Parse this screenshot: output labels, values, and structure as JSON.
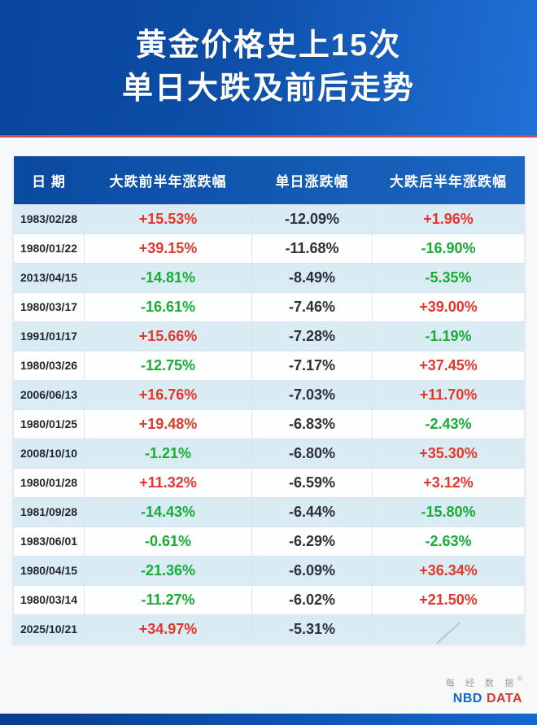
{
  "colors": {
    "up": "#e2382c",
    "down": "#17ad35",
    "neutral": "#2e3038",
    "banner_red_line": "#c84a52",
    "header_blue": "#0d4ea8"
  },
  "header": {
    "title_line1": "黄金价格史上15次",
    "title_line2": "单日大跌及前后走势"
  },
  "table": {
    "headers": [
      "日 期",
      "大跌前半年涨跌幅",
      "单日涨跌幅",
      "大跌后半年涨跌幅"
    ],
    "rows": [
      {
        "date": "1983/02/28",
        "before": "+15.53%",
        "day": "-12.09%",
        "after": "+1.96%"
      },
      {
        "date": "1980/01/22",
        "before": "+39.15%",
        "day": "-11.68%",
        "after": "-16.90%"
      },
      {
        "date": "2013/04/15",
        "before": "-14.81%",
        "day": "-8.49%",
        "after": "-5.35%"
      },
      {
        "date": "1980/03/17",
        "before": "-16.61%",
        "day": "-7.46%",
        "after": "+39.00%"
      },
      {
        "date": "1991/01/17",
        "before": "+15.66%",
        "day": "-7.28%",
        "after": "-1.19%"
      },
      {
        "date": "1980/03/26",
        "before": "-12.75%",
        "day": "-7.17%",
        "after": "+37.45%"
      },
      {
        "date": "2006/06/13",
        "before": "+16.76%",
        "day": "-7.03%",
        "after": "+11.70%"
      },
      {
        "date": "1980/01/25",
        "before": "+19.48%",
        "day": "-6.83%",
        "after": "-2.43%"
      },
      {
        "date": "2008/10/10",
        "before": "-1.21%",
        "day": "-6.80%",
        "after": "+35.30%"
      },
      {
        "date": "1980/01/28",
        "before": "+11.32%",
        "day": "-6.59%",
        "after": "+3.12%"
      },
      {
        "date": "1981/09/28",
        "before": "-14.43%",
        "day": "-6.44%",
        "after": "-15.80%"
      },
      {
        "date": "1983/06/01",
        "before": "-0.61%",
        "day": "-6.29%",
        "after": "-2.63%"
      },
      {
        "date": "1980/04/15",
        "before": "-21.36%",
        "day": "-6.09%",
        "after": "+36.34%"
      },
      {
        "date": "1980/03/14",
        "before": "-11.27%",
        "day": "-6.02%",
        "after": "+21.50%"
      },
      {
        "date": "2025/10/21",
        "before": "+34.97%",
        "day": "-5.31%",
        "after": ""
      }
    ]
  },
  "footer": {
    "brand_cn": "每 经 数 据",
    "brand_mark": "©",
    "brand_en_blue": "NBD",
    "brand_en_red": "DATA"
  },
  "chart_data": {
    "type": "table",
    "title": "黄金价格史上15次单日大跌及前后走势",
    "columns": [
      "日期",
      "大跌前半年涨跌幅(%)",
      "单日涨跌幅(%)",
      "大跌后半年涨跌幅(%)"
    ],
    "rows": [
      [
        "1983/02/28",
        15.53,
        -12.09,
        1.96
      ],
      [
        "1980/01/22",
        39.15,
        -11.68,
        -16.9
      ],
      [
        "2013/04/15",
        -14.81,
        -8.49,
        -5.35
      ],
      [
        "1980/03/17",
        -16.61,
        -7.46,
        39.0
      ],
      [
        "1991/01/17",
        15.66,
        -7.28,
        -1.19
      ],
      [
        "1980/03/26",
        -12.75,
        -7.17,
        37.45
      ],
      [
        "2006/06/13",
        16.76,
        -7.03,
        11.7
      ],
      [
        "1980/01/25",
        19.48,
        -6.83,
        -2.43
      ],
      [
        "2008/10/10",
        -1.21,
        -6.8,
        35.3
      ],
      [
        "1980/01/28",
        11.32,
        -6.59,
        3.12
      ],
      [
        "1981/09/28",
        -14.43,
        -6.44,
        -15.8
      ],
      [
        "1983/06/01",
        -0.61,
        -6.29,
        -2.63
      ],
      [
        "1980/04/15",
        -21.36,
        -6.09,
        36.34
      ],
      [
        "1980/03/14",
        -11.27,
        -6.02,
        21.5
      ],
      [
        "2025/10/21",
        34.97,
        -5.31,
        null
      ]
    ],
    "legend": "红色=上涨(+), 绿色=下跌(-); 单日涨跌幅列为深色中性"
  }
}
